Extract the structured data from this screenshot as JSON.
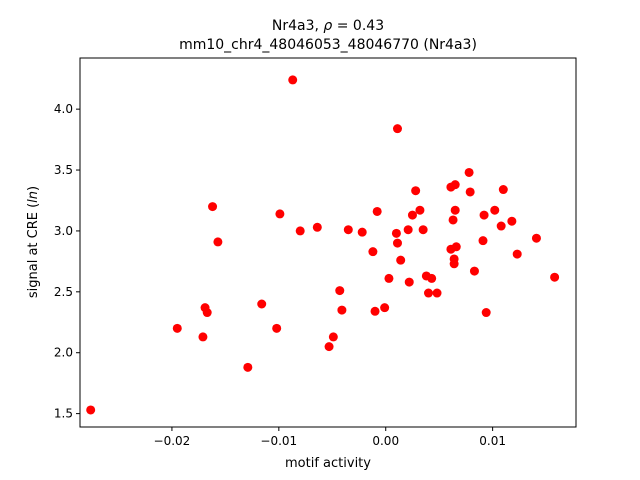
{
  "chart_data": {
    "type": "scatter",
    "title_line1_prefix": "Nr4a3, ",
    "title_line1_rho": "ρ",
    "title_line1_suffix": " = 0.43",
    "title_line2": "mm10_chr4_48046053_48046770 (Nr4a3)",
    "xlabel": "motif activity",
    "ylabel_prefix": "signal at CRE (",
    "ylabel_italic": "ln",
    "ylabel_suffix": ")",
    "xlim": [
      -0.0286,
      0.0178
    ],
    "ylim": [
      1.39,
      4.42
    ],
    "xticks": [
      -0.02,
      -0.01,
      0.0,
      0.01
    ],
    "xtick_labels": [
      "−0.02",
      "−0.01",
      "0.00",
      "0.01"
    ],
    "yticks": [
      1.5,
      2.0,
      2.5,
      3.0,
      3.5,
      4.0
    ],
    "ytick_labels": [
      "1.5",
      "2.0",
      "2.5",
      "3.0",
      "3.5",
      "4.0"
    ],
    "grid": false,
    "marker_color": "#ff0000",
    "points": [
      {
        "x": -0.0276,
        "y": 1.53
      },
      {
        "x": -0.0195,
        "y": 2.2
      },
      {
        "x": -0.0171,
        "y": 2.13
      },
      {
        "x": -0.0169,
        "y": 2.37
      },
      {
        "x": -0.0167,
        "y": 2.33
      },
      {
        "x": -0.0162,
        "y": 3.2
      },
      {
        "x": -0.0157,
        "y": 2.91
      },
      {
        "x": -0.0129,
        "y": 1.88
      },
      {
        "x": -0.0116,
        "y": 2.4
      },
      {
        "x": -0.0102,
        "y": 2.2
      },
      {
        "x": -0.0099,
        "y": 3.14
      },
      {
        "x": -0.0087,
        "y": 4.24
      },
      {
        "x": -0.008,
        "y": 3.0
      },
      {
        "x": -0.0064,
        "y": 3.03
      },
      {
        "x": -0.0053,
        "y": 2.05
      },
      {
        "x": -0.0049,
        "y": 2.13
      },
      {
        "x": -0.0043,
        "y": 2.51
      },
      {
        "x": -0.0041,
        "y": 2.35
      },
      {
        "x": -0.0035,
        "y": 3.01
      },
      {
        "x": -0.0022,
        "y": 2.99
      },
      {
        "x": -0.0012,
        "y": 2.83
      },
      {
        "x": -0.001,
        "y": 2.34
      },
      {
        "x": -0.0008,
        "y": 3.16
      },
      {
        "x": -0.0001,
        "y": 2.37
      },
      {
        "x": 0.0003,
        "y": 2.61
      },
      {
        "x": 0.001,
        "y": 2.98
      },
      {
        "x": 0.0011,
        "y": 2.9
      },
      {
        "x": 0.0011,
        "y": 3.84
      },
      {
        "x": 0.0014,
        "y": 2.76
      },
      {
        "x": 0.0021,
        "y": 3.01
      },
      {
        "x": 0.0022,
        "y": 2.58
      },
      {
        "x": 0.0025,
        "y": 3.13
      },
      {
        "x": 0.0028,
        "y": 3.33
      },
      {
        "x": 0.0032,
        "y": 3.17
      },
      {
        "x": 0.0035,
        "y": 3.01
      },
      {
        "x": 0.0038,
        "y": 2.63
      },
      {
        "x": 0.004,
        "y": 2.49
      },
      {
        "x": 0.0043,
        "y": 2.61
      },
      {
        "x": 0.0048,
        "y": 2.49
      },
      {
        "x": 0.0061,
        "y": 2.85
      },
      {
        "x": 0.0061,
        "y": 3.36
      },
      {
        "x": 0.0063,
        "y": 3.09
      },
      {
        "x": 0.0064,
        "y": 2.77
      },
      {
        "x": 0.0064,
        "y": 2.73
      },
      {
        "x": 0.0065,
        "y": 3.17
      },
      {
        "x": 0.0065,
        "y": 3.38
      },
      {
        "x": 0.0066,
        "y": 2.87
      },
      {
        "x": 0.0078,
        "y": 3.48
      },
      {
        "x": 0.0079,
        "y": 3.32
      },
      {
        "x": 0.0083,
        "y": 2.67
      },
      {
        "x": 0.0091,
        "y": 2.92
      },
      {
        "x": 0.0092,
        "y": 3.13
      },
      {
        "x": 0.0094,
        "y": 2.33
      },
      {
        "x": 0.0102,
        "y": 3.17
      },
      {
        "x": 0.0108,
        "y": 3.04
      },
      {
        "x": 0.011,
        "y": 3.34
      },
      {
        "x": 0.0118,
        "y": 3.08
      },
      {
        "x": 0.0123,
        "y": 2.81
      },
      {
        "x": 0.0141,
        "y": 2.94
      },
      {
        "x": 0.0158,
        "y": 2.62
      }
    ]
  }
}
